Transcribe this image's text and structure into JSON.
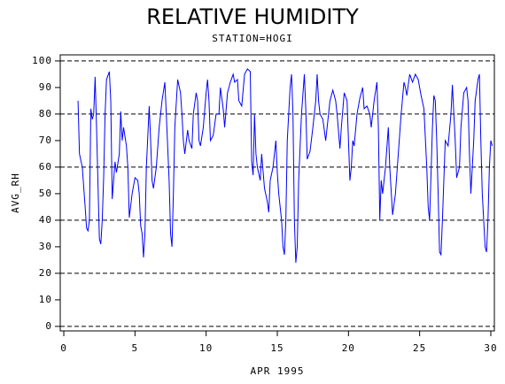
{
  "chart_data": {
    "type": "line",
    "title": "RELATIVE HUMIDITY",
    "subtitle": "STATION=HOGI",
    "x_label": "APR 1995",
    "y_label": "AVG_RH",
    "x": [
      1.0,
      1.1,
      1.3,
      1.5,
      1.6,
      1.7,
      1.8,
      1.9,
      2.0,
      2.1,
      2.2,
      2.3,
      2.5,
      2.6,
      2.7,
      2.8,
      2.9,
      3.0,
      3.2,
      3.3,
      3.4,
      3.5,
      3.6,
      3.7,
      3.9,
      4.0,
      4.1,
      4.2,
      4.4,
      4.5,
      4.6,
      4.8,
      5.0,
      5.2,
      5.3,
      5.4,
      5.5,
      5.6,
      5.7,
      5.8,
      6.0,
      6.1,
      6.2,
      6.3,
      6.5,
      6.7,
      6.9,
      7.1,
      7.2,
      7.4,
      7.5,
      7.6,
      7.7,
      7.8,
      8.0,
      8.2,
      8.3,
      8.4,
      8.5,
      8.7,
      8.8,
      9.0,
      9.1,
      9.3,
      9.4,
      9.5,
      9.6,
      9.8,
      10.0,
      10.1,
      10.2,
      10.3,
      10.5,
      10.7,
      10.9,
      11.0,
      11.2,
      11.3,
      11.5,
      11.7,
      11.9,
      12.0,
      12.2,
      12.3,
      12.5,
      12.7,
      12.9,
      13.1,
      13.2,
      13.3,
      13.4,
      13.5,
      13.6,
      13.8,
      13.9,
      14.1,
      14.3,
      14.4,
      14.5,
      14.7,
      14.9,
      15.0,
      15.1,
      15.3,
      15.4,
      15.5,
      15.6,
      15.7,
      15.9,
      16.0,
      16.1,
      16.2,
      16.3,
      16.4,
      16.5,
      16.7,
      16.9,
      17.0,
      17.1,
      17.3,
      17.5,
      17.7,
      17.8,
      17.9,
      18.0,
      18.2,
      18.4,
      18.5,
      18.7,
      18.9,
      19.1,
      19.2,
      19.4,
      19.5,
      19.7,
      19.9,
      20.0,
      20.1,
      20.2,
      20.3,
      20.4,
      20.6,
      20.8,
      21.0,
      21.1,
      21.3,
      21.5,
      21.6,
      21.8,
      22.0,
      22.1,
      22.2,
      22.3,
      22.4,
      22.6,
      22.8,
      22.9,
      23.1,
      23.3,
      23.5,
      23.7,
      23.9,
      24.0,
      24.1,
      24.3,
      24.5,
      24.7,
      24.9,
      25.1,
      25.3,
      25.5,
      25.6,
      25.7,
      25.9,
      26.0,
      26.1,
      26.2,
      26.3,
      26.4,
      26.5,
      26.6,
      26.8,
      27.0,
      27.2,
      27.3,
      27.5,
      27.6,
      27.8,
      27.9,
      28.1,
      28.3,
      28.4,
      28.5,
      28.6,
      28.8,
      28.9,
      29.1,
      29.2,
      29.3,
      29.4,
      29.6,
      29.7,
      29.8,
      29.9,
      30.0,
      30.1
    ],
    "series": [
      {
        "name": "AVG_RH",
        "color": "#0000ff",
        "values": [
          85,
          65,
          60,
          45,
          37,
          36,
          40,
          82,
          78,
          80,
          94,
          75,
          33,
          31,
          40,
          56,
          80,
          93,
          96,
          85,
          48,
          55,
          62,
          58,
          65,
          81,
          70,
          75,
          68,
          60,
          41,
          50,
          56,
          55,
          50,
          38,
          35,
          26,
          35,
          60,
          83,
          70,
          55,
          52,
          60,
          75,
          85,
          92,
          80,
          55,
          35,
          30,
          50,
          75,
          93,
          88,
          80,
          70,
          65,
          74,
          70,
          67,
          80,
          88,
          85,
          70,
          68,
          75,
          88,
          93,
          85,
          70,
          72,
          80,
          80,
          90,
          82,
          75,
          88,
          92,
          95,
          92,
          93,
          85,
          83,
          95,
          97,
          96,
          62,
          57,
          80,
          65,
          60,
          55,
          65,
          52,
          47,
          43,
          55,
          60,
          70,
          58,
          50,
          40,
          30,
          27,
          40,
          70,
          90,
          95,
          80,
          40,
          24,
          30,
          55,
          80,
          95,
          82,
          63,
          66,
          75,
          85,
          95,
          85,
          80,
          78,
          70,
          75,
          85,
          89,
          85,
          80,
          67,
          75,
          88,
          85,
          70,
          55,
          60,
          70,
          68,
          80,
          86,
          90,
          82,
          83,
          80,
          75,
          85,
          92,
          75,
          40,
          55,
          50,
          60,
          75,
          60,
          42,
          50,
          65,
          80,
          92,
          90,
          87,
          95,
          92,
          95,
          93,
          87,
          82,
          60,
          45,
          40,
          75,
          87,
          85,
          70,
          50,
          28,
          27,
          40,
          70,
          68,
          80,
          91,
          70,
          56,
          60,
          75,
          88,
          90,
          85,
          65,
          50,
          70,
          85,
          93,
          95,
          70,
          50,
          30,
          28,
          40,
          60,
          70,
          68
        ]
      }
    ],
    "xlim": [
      -0.25,
      30.25
    ],
    "xticks": [
      0,
      5,
      10,
      15,
      20,
      25,
      30
    ],
    "ylim": [
      -1.7,
      102.3
    ],
    "yticks": [
      0,
      10,
      20,
      30,
      40,
      50,
      60,
      70,
      80,
      90,
      100
    ],
    "grid_lines": [
      0,
      20,
      40,
      60,
      80,
      100
    ]
  }
}
